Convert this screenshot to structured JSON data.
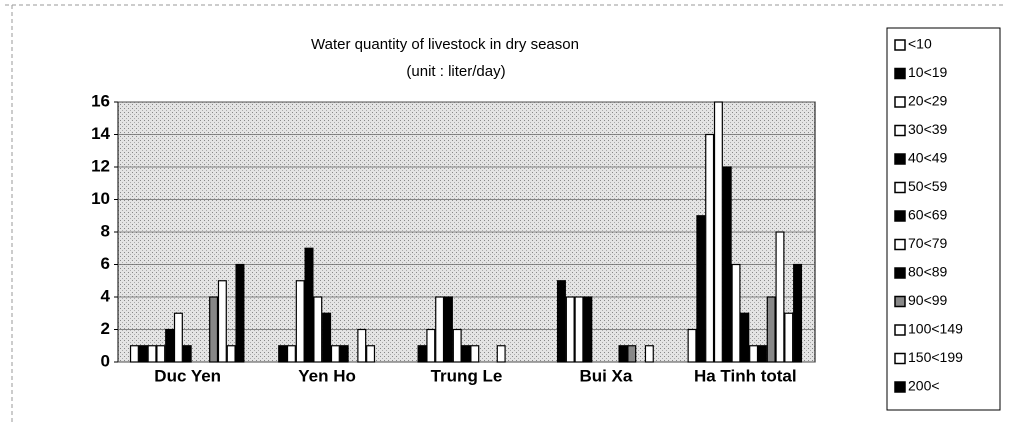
{
  "chart_data": {
    "type": "bar",
    "title": "Water quantity of livestock in dry season",
    "subtitle": "(unit : liter/day)",
    "categories": [
      "Duc Yen",
      "Yen Ho",
      "Trung Le",
      "Bui Xa",
      "Ha Tinh total"
    ],
    "series": [
      {
        "name": "<10",
        "color": "#ffffff",
        "values": [
          1,
          0,
          0,
          0,
          2
        ]
      },
      {
        "name": "10<19",
        "color": "#000000",
        "values": [
          1,
          1,
          1,
          5,
          9
        ]
      },
      {
        "name": "20<29",
        "color": "#ffffff",
        "values": [
          1,
          1,
          2,
          4,
          14
        ]
      },
      {
        "name": "30<39",
        "color": "#ffffff",
        "values": [
          1,
          5,
          4,
          4,
          16
        ]
      },
      {
        "name": "40<49",
        "color": "#000000",
        "values": [
          2,
          7,
          4,
          4,
          12
        ]
      },
      {
        "name": "50<59",
        "color": "#ffffff",
        "values": [
          3,
          4,
          2,
          0,
          6
        ]
      },
      {
        "name": "60<69",
        "color": "#000000",
        "values": [
          1,
          3,
          1,
          0,
          3
        ]
      },
      {
        "name": "70<79",
        "color": "#ffffff",
        "values": [
          0,
          1,
          1,
          0,
          1
        ]
      },
      {
        "name": "80<89",
        "color": "#000000",
        "values": [
          0,
          1,
          0,
          1,
          1
        ]
      },
      {
        "name": "90<99",
        "color": "#888888",
        "values": [
          4,
          0,
          0,
          1,
          4
        ]
      },
      {
        "name": "100<149",
        "color": "#ffffff",
        "values": [
          5,
          2,
          1,
          0,
          8
        ]
      },
      {
        "name": "150<199",
        "color": "#ffffff",
        "values": [
          1,
          1,
          0,
          1,
          3
        ]
      },
      {
        "name": "200<",
        "color": "#000000",
        "values": [
          6,
          0,
          0,
          0,
          6
        ]
      }
    ],
    "ylim": [
      0,
      16
    ],
    "yticks": [
      0,
      2,
      4,
      6,
      8,
      10,
      12,
      14,
      16
    ],
    "grid": true,
    "legend": "right"
  }
}
